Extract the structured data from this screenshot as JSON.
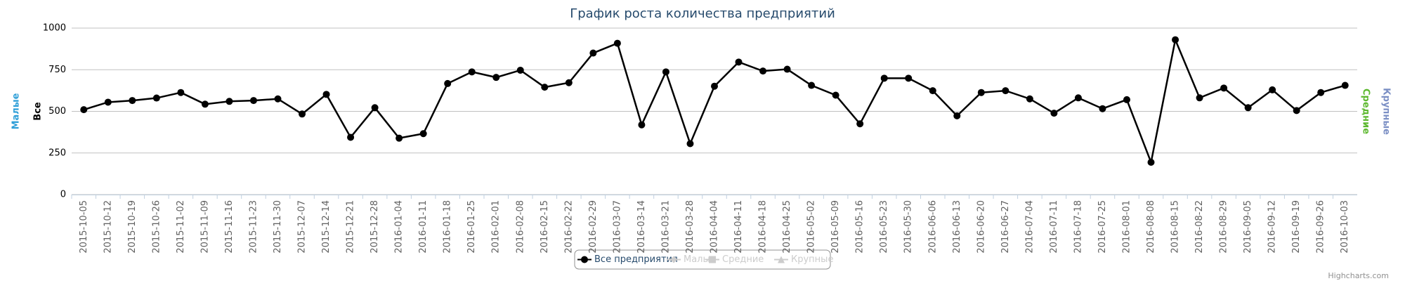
{
  "chart_data": {
    "type": "line",
    "title": "График роста количества предприятий",
    "categories": [
      "2015-10-05",
      "2015-10-12",
      "2015-10-19",
      "2015-10-26",
      "2015-11-02",
      "2015-11-09",
      "2015-11-16",
      "2015-11-23",
      "2015-11-30",
      "2015-12-07",
      "2015-12-14",
      "2015-12-21",
      "2015-12-28",
      "2016-01-04",
      "2016-01-11",
      "2016-01-18",
      "2016-01-25",
      "2016-02-01",
      "2016-02-08",
      "2016-02-15",
      "2016-02-22",
      "2016-02-29",
      "2016-03-07",
      "2016-03-14",
      "2016-03-21",
      "2016-03-28",
      "2016-04-04",
      "2016-04-11",
      "2016-04-18",
      "2016-04-25",
      "2016-05-02",
      "2016-05-09",
      "2016-05-16",
      "2016-05-23",
      "2016-05-30",
      "2016-06-06",
      "2016-06-13",
      "2016-06-20",
      "2016-06-27",
      "2016-07-04",
      "2016-07-11",
      "2016-07-18",
      "2016-07-25",
      "2016-08-01",
      "2016-08-08",
      "2016-08-15",
      "2016-08-22",
      "2016-08-29",
      "2016-09-05",
      "2016-09-12",
      "2016-09-19",
      "2016-09-26",
      "2016-10-03"
    ],
    "series": [
      {
        "name": "Все предприятия",
        "color": "#000000",
        "marker": "circle",
        "values": [
          510,
          555,
          565,
          580,
          613,
          543,
          560,
          565,
          575,
          484,
          602,
          344,
          522,
          339,
          366,
          667,
          737,
          704,
          747,
          645,
          672,
          850,
          909,
          419,
          737,
          306,
          651,
          796,
          742,
          753,
          656,
          597,
          425,
          699,
          699,
          624,
          473,
          613,
          624,
          575,
          489,
          581,
          516,
          570,
          194,
          930,
          581,
          640,
          522,
          629,
          505,
          613,
          656
        ]
      },
      {
        "name": "Малые",
        "color": "#cccccc",
        "marker": "diamond",
        "visible": false
      },
      {
        "name": "Средние",
        "color": "#cccccc",
        "marker": "square",
        "visible": false
      },
      {
        "name": "Крупные",
        "color": "#cccccc",
        "marker": "triangle",
        "visible": false
      }
    ],
    "ylim": [
      0,
      1000
    ],
    "yticks": [
      0,
      250,
      500,
      750,
      1000
    ],
    "grid": true,
    "y_axis_titles": [
      {
        "text": "Малые",
        "color": "#2f9fd8",
        "side": "left"
      },
      {
        "text": "Все",
        "color": "#000000",
        "side": "left"
      },
      {
        "text": "Средние",
        "color": "#5cb82e",
        "side": "right"
      },
      {
        "text": "Крупные",
        "color": "#7b8fc4",
        "side": "right"
      }
    ],
    "legend": "bottom",
    "credits": "Highcharts.com"
  }
}
